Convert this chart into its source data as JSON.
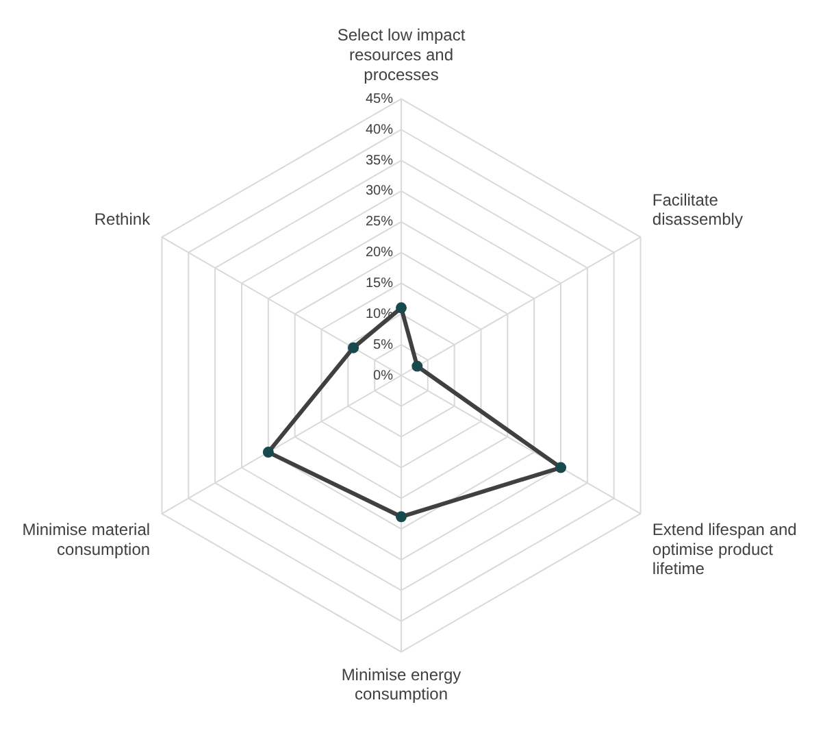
{
  "chart_data": {
    "type": "radar",
    "categories": [
      "Select low impact resources and processes",
      "Facilitate disassembly",
      "Extend lifespan and optimise product lifetime",
      "Minimise energy consumption",
      "Minimise material consumption",
      "Rethink"
    ],
    "series": [
      {
        "color": "#404040",
        "values": [
          11,
          3,
          30,
          23,
          25,
          9
        ]
      }
    ],
    "ylim": [
      0,
      45
    ],
    "yticks": [
      {
        "value": 0,
        "label": "0%"
      },
      {
        "value": 5,
        "label": "5%"
      },
      {
        "value": 10,
        "label": "10%"
      },
      {
        "value": 15,
        "label": "15%"
      },
      {
        "value": 20,
        "label": "20%"
      },
      {
        "value": 25,
        "label": "25%"
      },
      {
        "value": 30,
        "label": "30%"
      },
      {
        "value": 35,
        "label": "35%"
      },
      {
        "value": 40,
        "label": "40%"
      },
      {
        "value": 45,
        "label": "45%"
      }
    ],
    "grid": true,
    "marker": "circle",
    "legend": false
  }
}
